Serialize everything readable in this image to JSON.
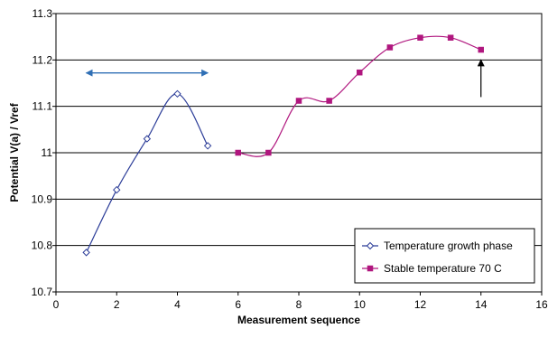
{
  "chart_data": {
    "type": "line",
    "title": "",
    "xlabel": "Measurement sequence",
    "ylabel": "Potential  V(a) / Vref",
    "xlim": [
      0,
      16
    ],
    "ylim": [
      10.7,
      11.3
    ],
    "xticks": [
      0,
      2,
      4,
      6,
      8,
      10,
      12,
      14,
      16
    ],
    "yticks": [
      10.7,
      10.8,
      10.9,
      11,
      11.1,
      11.2,
      11.3
    ],
    "ytick_labels": [
      "10.7",
      "10.8",
      "10.9",
      "11",
      "11.1",
      "11.2",
      "11.3"
    ],
    "grid": "horizontal",
    "legend_position": "bottom-right",
    "series": [
      {
        "name": "Temperature growth phase",
        "color": "#2b3c98",
        "marker": "diamond-open",
        "x": [
          1,
          2,
          3,
          4,
          5
        ],
        "y": [
          10.785,
          10.92,
          11.03,
          11.127,
          11.015
        ]
      },
      {
        "name": "Stable temperature 70 C",
        "color": "#b0167e",
        "marker": "square-filled",
        "x": [
          6,
          7,
          8,
          9,
          10,
          11,
          12,
          13,
          14
        ],
        "y": [
          11.0,
          11.0,
          11.112,
          11.112,
          11.173,
          11.227,
          11.248,
          11.248,
          11.222
        ]
      }
    ],
    "annotations": [
      {
        "type": "double-arrow",
        "color": "#2f6fb5",
        "x_from": 1,
        "x_to": 5,
        "y": 11.172
      },
      {
        "type": "arrow-up",
        "color": "#000000",
        "x": 14,
        "y_from": 11.12,
        "y_to": 11.2
      }
    ]
  }
}
